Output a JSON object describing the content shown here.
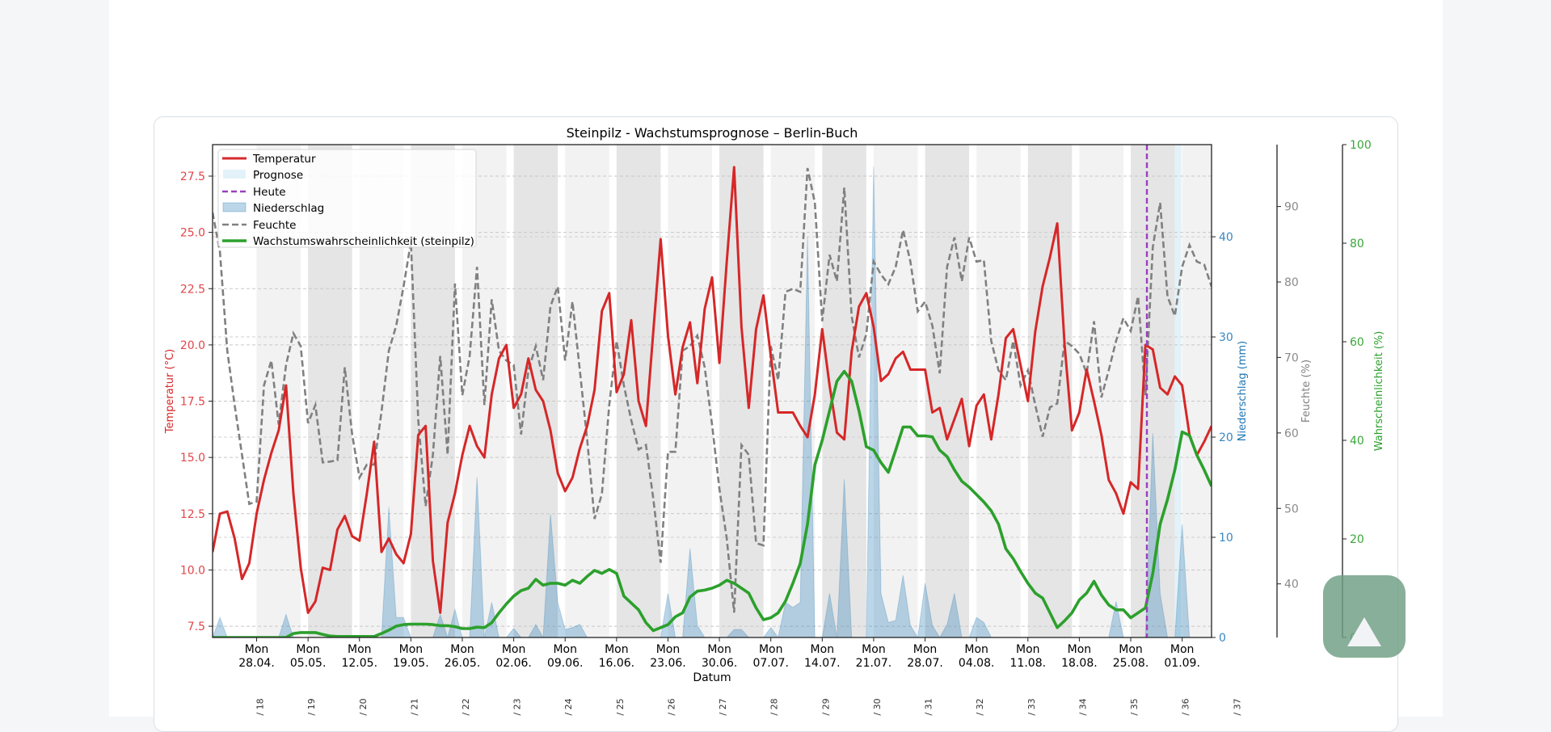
{
  "chart_data": {
    "type": "line",
    "title": "Steinpilz - Wachstumsprognose – Berlin-Buch",
    "xlabel": "Datum",
    "start_date": "22.04.",
    "x_tick_labels": [
      [
        "Mon",
        "28.04."
      ],
      [
        "Mon",
        "05.05."
      ],
      [
        "Mon",
        "12.05."
      ],
      [
        "Mon",
        "19.05."
      ],
      [
        "Mon",
        "26.05."
      ],
      [
        "Mon",
        "02.06."
      ],
      [
        "Mon",
        "09.06."
      ],
      [
        "Mon",
        "16.06."
      ],
      [
        "Mon",
        "23.06."
      ],
      [
        "Mon",
        "30.06."
      ],
      [
        "Mon",
        "07.07."
      ],
      [
        "Mon",
        "14.07."
      ],
      [
        "Mon",
        "21.07."
      ],
      [
        "Mon",
        "28.07."
      ],
      [
        "Mon",
        "04.08."
      ],
      [
        "Mon",
        "11.08."
      ],
      [
        "Mon",
        "18.08."
      ],
      [
        "Mon",
        "25.08."
      ],
      [
        "Mon",
        "01.09."
      ]
    ],
    "first_monday_index": 6,
    "week_labels": [
      "/ 18",
      "/ 19",
      "/ 20",
      "/ 21",
      "/ 22",
      "/ 23",
      "/ 24",
      "/ 25",
      "/ 26",
      "/ 27",
      "/ 28",
      "/ 29",
      "/ 30",
      "/ 31",
      "/ 32",
      "/ 33",
      "/ 34",
      "/ 35",
      "/ 36",
      "/ 37"
    ],
    "today_index": 127.2,
    "forecast_range": [
      131,
      131.9
    ],
    "axes": {
      "temperature": {
        "label": "Temperatur (°C)",
        "ylim": [
          7.0,
          28.9
        ],
        "ticks": [
          7.5,
          10.0,
          12.5,
          15.0,
          17.5,
          20.0,
          22.5,
          25.0,
          27.5
        ],
        "color": "#d62728"
      },
      "precipitation": {
        "label": "Niederschlag (mm)",
        "ylim": [
          0,
          49.2
        ],
        "ticks": [
          0,
          10,
          20,
          30,
          40
        ],
        "color": "#1f77b4"
      },
      "humidity": {
        "label": "Feuchte (%)",
        "ylim": [
          32.9,
          98.2
        ],
        "ticks": [
          40,
          50,
          60,
          70,
          80,
          90
        ],
        "color": "#808080"
      },
      "probability": {
        "label": "Wahrscheinlichkeit (%)",
        "ylim": [
          0,
          100
        ],
        "ticks": [
          0,
          20,
          40,
          60,
          80,
          100
        ],
        "color": "#2ca02c"
      }
    },
    "legend": {
      "placement": "top-left",
      "entries": [
        "Temperatur",
        "Prognose",
        "Heute",
        "Niederschlag",
        "Feuchte",
        "Wachstumswahrscheinlichkeit (steinpilz)"
      ]
    },
    "colors": {
      "temperature": "#d62728",
      "forecast": "#e3f2f8",
      "today": "#9b3fbf",
      "precipitation": "#1f77b4",
      "humidity": "#808080",
      "probability": "#2ca02c",
      "band_light": "#f2f2f2",
      "band_dark": "#e5e5e5"
    },
    "series": {
      "temperature": [
        10.8,
        12.5,
        12.6,
        11.4,
        9.6,
        10.3,
        12.5,
        14.0,
        15.2,
        16.2,
        18.2,
        13.4,
        10.1,
        8.1,
        8.6,
        10.1,
        10.0,
        11.8,
        12.4,
        11.5,
        11.3,
        13.4,
        15.7,
        10.8,
        11.4,
        10.7,
        10.3,
        11.6,
        16.0,
        16.4,
        10.4,
        8.1,
        12.1,
        13.4,
        15.1,
        16.4,
        15.5,
        15.0,
        17.8,
        19.4,
        20.0,
        17.2,
        17.8,
        19.4,
        18.0,
        17.5,
        16.2,
        14.3,
        13.5,
        14.1,
        15.4,
        16.4,
        18.0,
        21.5,
        22.3,
        17.9,
        18.7,
        21.1,
        17.5,
        16.4,
        20.6,
        24.7,
        20.4,
        17.8,
        19.9,
        21.0,
        18.3,
        21.6,
        23.0,
        19.2,
        23.7,
        27.9,
        20.8,
        17.2,
        20.7,
        22.2,
        19.5,
        17.0,
        17.0,
        17.0,
        16.4,
        15.9,
        17.8,
        20.7,
        18.2,
        16.1,
        15.8,
        19.7,
        21.7,
        22.3,
        20.8,
        18.4,
        18.7,
        19.4,
        19.7,
        18.9,
        18.9,
        18.9,
        17.0,
        17.2,
        15.8,
        16.7,
        17.6,
        15.5,
        17.3,
        17.8,
        15.8,
        17.8,
        20.3,
        20.7,
        19.1,
        17.5,
        20.6,
        22.6,
        23.9,
        25.4,
        20.0,
        16.2,
        17.0,
        18.9,
        17.5,
        16.0,
        14.0,
        13.4,
        12.5,
        13.9,
        13.6,
        20.0,
        19.8,
        18.1,
        17.8,
        18.6,
        18.2,
        16.0,
        15.1,
        15.7,
        16.4
      ],
      "humidity": [
        89.2,
        84,
        70.9,
        63.7,
        57.1,
        50.6,
        50.9,
        66.3,
        69.6,
        61.1,
        69.0,
        73.2,
        71.5,
        61.3,
        63.7,
        56.1,
        56.2,
        56.4,
        68.7,
        59.8,
        54.1,
        55.8,
        55.8,
        62.8,
        70.9,
        74.2,
        79.4,
        85.3,
        61.7,
        50.3,
        57.1,
        70.2,
        57.1,
        79.8,
        65,
        70.2,
        82,
        63.7,
        77.7,
        70.9,
        69.6,
        69.0,
        59.8,
        68.3,
        71.5,
        67,
        76.8,
        79.4,
        69.6,
        77.4,
        68.3,
        59.1,
        48.6,
        51.9,
        63.7,
        72.2,
        66.3,
        61.7,
        57.8,
        58.4,
        51.3,
        42.8,
        57.5,
        57.5,
        70.9,
        71.5,
        72.9,
        68.7,
        61.1,
        52.6,
        46,
        36.2,
        58.4,
        57.1,
        45.4,
        45.1,
        71.5,
        67,
        78.7,
        79.1,
        78.7,
        95.1,
        90.5,
        74.8,
        83.6,
        80.1,
        92.5,
        75.5,
        70,
        73.1,
        82.7,
        81,
        79.7,
        82,
        86.9,
        82.7,
        76.1,
        77.4,
        74.2,
        67.9,
        82,
        85.9,
        80.1,
        85.9,
        82.7,
        82.9,
        72.2,
        68.3,
        67,
        72.2,
        66.3,
        68.3,
        63.7,
        59.5,
        63.4,
        63.9,
        72.2,
        71.5,
        70.5,
        67.9,
        74.8,
        64.7,
        68.3,
        72.2,
        75.2,
        73.5,
        78.1,
        65,
        84.6,
        90.5,
        78.1,
        75.5,
        82,
        84.9,
        82.7,
        82.3,
        79.4
      ],
      "precipitation": [
        0,
        2,
        0,
        0,
        0,
        0,
        0,
        0,
        0,
        0,
        2.3,
        0,
        0,
        0,
        0,
        0,
        0,
        0,
        0,
        0,
        0,
        0,
        0,
        0,
        13,
        2,
        2,
        0,
        0,
        0,
        0,
        2.3,
        0,
        2.8,
        0,
        0,
        16,
        0,
        3.5,
        0,
        0,
        0.9,
        0,
        0,
        1.3,
        0,
        12.3,
        3.5,
        0.8,
        1,
        1.3,
        0,
        0,
        0,
        0,
        0,
        0,
        0,
        0,
        0,
        0,
        0,
        4.4,
        0,
        0,
        8.9,
        1.2,
        0,
        0,
        0,
        0,
        0.8,
        0.8,
        0,
        0,
        0,
        1,
        0,
        3.5,
        3,
        3.5,
        40,
        0,
        0,
        4.4,
        0,
        15.8,
        0,
        0,
        0,
        47,
        4.4,
        1.5,
        1.7,
        6.2,
        1.2,
        0,
        5.4,
        1.2,
        0,
        1.3,
        4.4,
        0,
        0,
        2,
        1.5,
        0,
        0,
        0,
        0,
        0,
        0,
        0,
        0,
        0,
        0,
        0,
        0,
        0,
        0,
        0,
        0,
        0,
        3.6,
        0,
        0,
        0,
        0,
        20.4,
        4.4,
        0,
        0,
        11.3,
        0,
        0,
        0,
        0
      ],
      "probability": [
        0,
        0,
        0,
        0,
        0,
        0,
        0,
        0,
        0,
        0,
        0,
        0.8,
        1.0,
        1.0,
        1.0,
        0.6,
        0.3,
        0.2,
        0.2,
        0.2,
        0.2,
        0.2,
        0.2,
        0.8,
        1.5,
        2.3,
        2.6,
        2.7,
        2.7,
        2.7,
        2.6,
        2.4,
        2.4,
        2.2,
        1.8,
        1.8,
        2.1,
        2.0,
        3.0,
        5.0,
        6.8,
        8.4,
        9.5,
        10,
        11.8,
        10.6,
        11,
        11,
        10.6,
        11.6,
        11,
        12.4,
        13.6,
        13,
        13.8,
        13,
        8.4,
        7,
        5.6,
        3,
        1.4,
        2,
        2.6,
        4.2,
        5,
        8.2,
        9.4,
        9.6,
        10,
        10.6,
        11.6,
        11,
        10,
        9,
        6,
        3.6,
        4,
        5,
        7.4,
        11,
        15,
        23,
        35,
        40,
        46,
        52,
        54,
        52,
        46,
        38.7,
        38,
        35.5,
        33.5,
        38,
        42.7,
        42.7,
        40.9,
        40.9,
        40.7,
        38,
        36.7,
        34,
        31.7,
        30.5,
        29,
        27.5,
        25.7,
        23,
        18,
        16,
        13.4,
        11,
        9,
        8,
        5,
        2,
        3.4,
        5,
        7.6,
        9,
        11.4,
        8.6,
        6.6,
        5.6,
        5.6,
        4,
        5,
        6,
        13,
        23,
        28,
        34,
        41.7,
        41,
        37,
        34,
        30.7
      ]
    }
  },
  "scroll_top": {
    "icon": "triangle-up-icon"
  }
}
